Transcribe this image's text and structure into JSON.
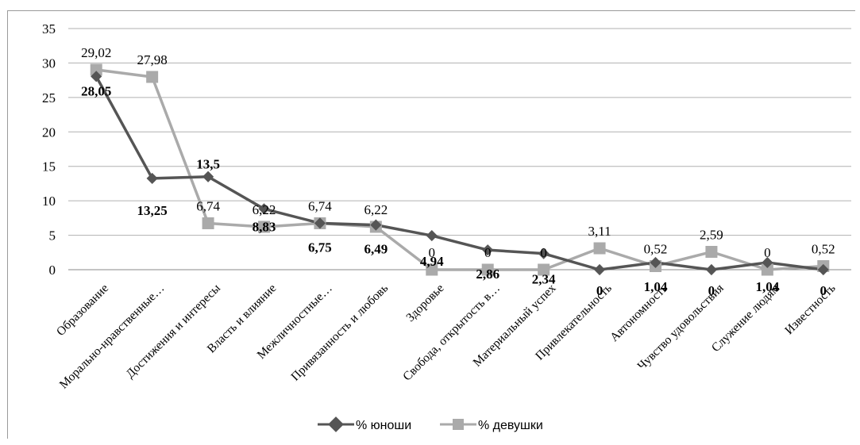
{
  "chart_data": {
    "type": "line",
    "categories": [
      "Образование",
      "Морально-нравственные…",
      "Достижения и интересы",
      "Власть и влияние",
      "Межличностные…",
      "Привязанность и любовь",
      "Здоровье",
      "Свобода, открытость в…",
      "Материальный успех",
      "Привлекательность",
      "Автономность",
      "Чувство удовольствия",
      "Служение людям",
      "Известность"
    ],
    "series": [
      {
        "name": "% юноши",
        "values": [
          28.05,
          13.25,
          13.5,
          8.83,
          6.75,
          6.49,
          4.94,
          2.86,
          2.34,
          0,
          1.04,
          0,
          1.04,
          0
        ],
        "labels": [
          "28,05",
          "13,25",
          "13,5",
          "8,83",
          "6,75",
          "6,49",
          "4,94",
          "2,86",
          "2,34",
          "0",
          "1,04",
          "0",
          "1,04",
          "0"
        ],
        "color": "#555555",
        "marker": "diamond"
      },
      {
        "name": "% девушки",
        "values": [
          29.02,
          27.98,
          6.74,
          6.22,
          6.74,
          6.22,
          0,
          0,
          0,
          3.11,
          0.52,
          2.59,
          0,
          0.52
        ],
        "labels": [
          "29,02",
          "27,98",
          "6,74",
          "6,22",
          "6,74",
          "6,22",
          "0",
          "0",
          "0",
          "3,11",
          "0,52",
          "2,59",
          "0",
          "0,52"
        ],
        "color": "#aaaaaa",
        "marker": "square"
      }
    ],
    "yticks": [
      "0",
      "5",
      "10",
      "15",
      "20",
      "25",
      "30",
      "35"
    ],
    "ylim": [
      0,
      35
    ],
    "grid": true,
    "legend": "bottom"
  }
}
